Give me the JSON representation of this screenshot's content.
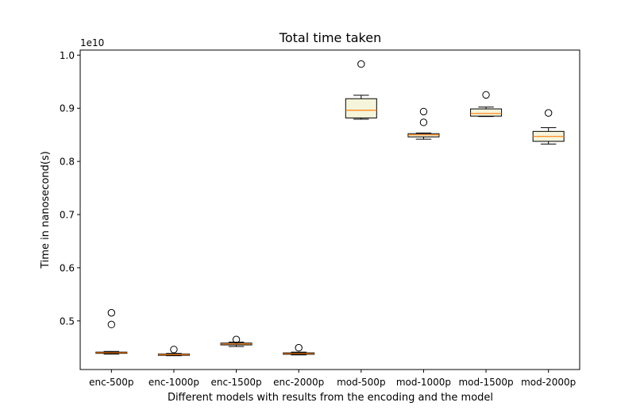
{
  "chart_data": {
    "type": "box",
    "title": "Total time taken",
    "xlabel": "Different models with results from the encoding and the model",
    "ylabel": "Time in nanosecond(s)",
    "y_offset_label": "1e10",
    "y_scale_factor": 10000000000,
    "ylim": [
      0.4085,
      1.0095
    ],
    "yticks": [
      0.5,
      0.6,
      0.7,
      0.8,
      0.9,
      1.0
    ],
    "ytick_labels": [
      "0.5",
      "0.6",
      "0.7",
      "0.8",
      "0.9",
      "1.0"
    ],
    "grid": false,
    "legend": "none",
    "categories": [
      "enc-500p",
      "enc-1000p",
      "enc-1500p",
      "enc-2000p",
      "mod-500p",
      "mod-1000p",
      "mod-1500p",
      "mod-2000p"
    ],
    "boxes": [
      {
        "whislo": 0.4375,
        "q1": 0.4389,
        "med": 0.44,
        "q3": 0.4412,
        "whishi": 0.4425,
        "fliers": [
          0.4932,
          0.5152
        ]
      },
      {
        "whislo": 0.4345,
        "q1": 0.4352,
        "med": 0.4365,
        "q3": 0.4378,
        "whishi": 0.4388,
        "fliers": [
          0.4462
        ]
      },
      {
        "whislo": 0.4518,
        "q1": 0.4548,
        "med": 0.4566,
        "q3": 0.4582,
        "whishi": 0.46,
        "fliers": [
          0.465
        ]
      },
      {
        "whislo": 0.436,
        "q1": 0.4372,
        "med": 0.4385,
        "q3": 0.4398,
        "whishi": 0.4412,
        "fliers": [
          0.4495
        ]
      },
      {
        "whislo": 0.8795,
        "q1": 0.8818,
        "med": 0.8962,
        "q3": 0.918,
        "whishi": 0.9245,
        "fliers": [
          0.9832
        ]
      },
      {
        "whislo": 0.8418,
        "q1": 0.8462,
        "med": 0.85,
        "q3": 0.8522,
        "whishi": 0.8535,
        "fliers": [
          0.8735,
          0.8938
        ]
      },
      {
        "whislo": 0.8845,
        "q1": 0.8852,
        "med": 0.8902,
        "q3": 0.8988,
        "whishi": 0.9022,
        "fliers": [
          0.9252
        ]
      },
      {
        "whislo": 0.8328,
        "q1": 0.8378,
        "med": 0.847,
        "q3": 0.8565,
        "whishi": 0.8635,
        "fliers": [
          0.8912
        ]
      }
    ],
    "colors": {
      "box_fill": "#f5f5dc",
      "box_edge": "#000000",
      "median": "#ff7f0e",
      "flier": "#000000"
    }
  }
}
